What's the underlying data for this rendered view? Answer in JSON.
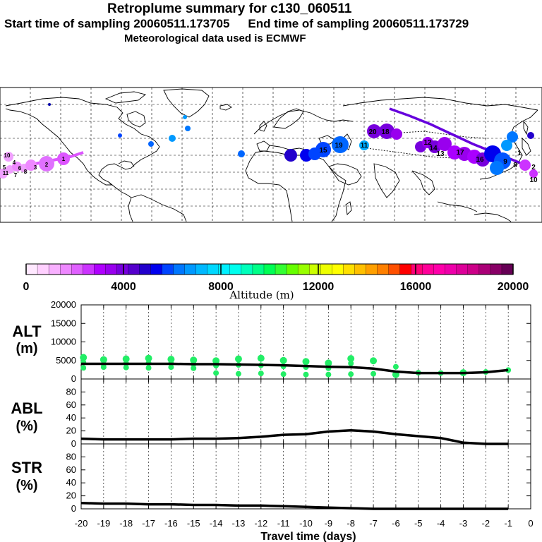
{
  "header": {
    "title": "Retroplume summary for c130_060511",
    "start_label": "Start time of sampling 20060511.173705",
    "end_label": "End time of sampling 20060511.173729",
    "met_label": "Meteorological data used is ECMWF"
  },
  "map": {
    "labels_west": [
      "10",
      "4",
      "5",
      "11",
      "6",
      "7",
      "8",
      "3",
      "2",
      "1"
    ],
    "labels_east": [
      "20",
      "18",
      "15",
      "19",
      "12",
      "13",
      "14",
      "16",
      "17",
      "11",
      "9",
      "10",
      "8",
      "1",
      "2"
    ]
  },
  "colorbar": {
    "title": "Altitude (m)",
    "tick_labels": [
      "0",
      "4000",
      "8000",
      "12000",
      "16000",
      "20000"
    ],
    "colors": [
      "#ffe8ff",
      "#ffd0ff",
      "#f8b0ff",
      "#ee88ff",
      "#e060ff",
      "#cc33ff",
      "#b000ff",
      "#9900ee",
      "#7700dd",
      "#5500cc",
      "#2200cc",
      "#0000ee",
      "#0044ff",
      "#0077ff",
      "#0099ff",
      "#00b8ff",
      "#00d8ff",
      "#00f0ff",
      "#00ffee",
      "#00ffbb",
      "#00ff88",
      "#00ff55",
      "#33ff33",
      "#66ff00",
      "#99ff00",
      "#ccff00",
      "#eeff00",
      "#ffff00",
      "#ffe000",
      "#ffc000",
      "#ffa000",
      "#ff8000",
      "#ff5000",
      "#ff0000",
      "#ff0077",
      "#ff0099",
      "#ff00aa",
      "#ee00aa",
      "#dd0099",
      "#cc0088",
      "#aa0077",
      "#880066",
      "#660055"
    ]
  },
  "chart_data": [
    {
      "type": "scatter",
      "panel": "ALT",
      "ylabel_line1": "ALT",
      "ylabel_line2": "(m)",
      "ylim": [
        0,
        20000
      ],
      "yticks": [
        "0",
        "5000",
        "10000",
        "15000",
        "20000"
      ],
      "line": {
        "x": [
          -20,
          -19,
          -18,
          -17,
          -16,
          -15,
          -14,
          -13,
          -12,
          -11,
          -10,
          -9,
          -8,
          -7,
          -6,
          -5,
          -4,
          -3,
          -2,
          -1
        ],
        "y": [
          4100,
          4100,
          4100,
          4100,
          4100,
          4000,
          4000,
          3900,
          3800,
          3700,
          3500,
          3300,
          3200,
          2800,
          2000,
          1600,
          1600,
          1600,
          1800,
          2400
        ]
      },
      "points": {
        "x": [
          -19.9,
          -19.9,
          -19.9,
          -19,
          -19,
          -19,
          -18,
          -18,
          -18,
          -17,
          -17,
          -17,
          -16,
          -16,
          -16,
          -15,
          -15,
          -15,
          -14,
          -14,
          -14,
          -13,
          -13,
          -13,
          -12,
          -12,
          -12,
          -11,
          -11,
          -11,
          -10,
          -10,
          -10,
          -9,
          -9,
          -9,
          -8,
          -8,
          -8,
          -7,
          -7,
          -6,
          -6,
          -5,
          -4,
          -3,
          -2,
          -1
        ],
        "y": [
          5800,
          4500,
          3000,
          5200,
          4000,
          3200,
          5400,
          4200,
          3100,
          5600,
          4300,
          3000,
          5300,
          4200,
          3200,
          5100,
          4000,
          2900,
          4900,
          3600,
          1600,
          5400,
          3800,
          1400,
          5600,
          3700,
          1500,
          5000,
          3400,
          1300,
          4700,
          3200,
          1200,
          4300,
          2900,
          1200,
          5500,
          4200,
          1300,
          4900,
          1400,
          3300,
          1200,
          1700,
          1600,
          1700,
          1900,
          2400
        ]
      }
    },
    {
      "type": "line",
      "panel": "ABL",
      "ylabel_line1": "ABL",
      "ylabel_line2": "(%)",
      "ylim": [
        0,
        100
      ],
      "yticks": [
        "0",
        "20",
        "40",
        "60",
        "80"
      ],
      "x": [
        -20,
        -19,
        -18,
        -17,
        -16,
        -15,
        -14,
        -13,
        -12,
        -11,
        -10,
        -9,
        -8,
        -7,
        -6,
        -5,
        -4,
        -3,
        -2,
        -1
      ],
      "y": [
        8,
        7,
        7,
        7,
        7,
        8,
        8,
        9,
        11,
        14,
        15,
        19,
        21,
        19,
        15,
        12,
        9,
        2,
        0,
        0
      ]
    },
    {
      "type": "line",
      "panel": "STR",
      "ylabel_line1": "STR",
      "ylabel_line2": "(%)",
      "ylim": [
        0,
        100
      ],
      "yticks": [
        "0",
        "20",
        "40",
        "60",
        "80"
      ],
      "x": [
        -20,
        -19,
        -18,
        -17,
        -16,
        -15,
        -14,
        -13,
        -12,
        -11,
        -10,
        -9,
        -8,
        -7,
        -6,
        -5,
        -4,
        -3,
        -2,
        -1
      ],
      "y": [
        9,
        8,
        8,
        7,
        7,
        6,
        6,
        5,
        5,
        4,
        3,
        2,
        1,
        0,
        0,
        0,
        0,
        0,
        0,
        0
      ]
    }
  ],
  "xaxis": {
    "tick_labels": [
      "-20",
      "-19",
      "-18",
      "-17",
      "-16",
      "-15",
      "-14",
      "-13",
      "-12",
      "-11",
      "-10",
      "-9",
      "-8",
      "-7",
      "-6",
      "-5",
      "-4",
      "-3",
      "-2",
      "-1",
      "0"
    ],
    "label": "Travel time (days)",
    "xlim": [
      -20,
      0
    ]
  }
}
